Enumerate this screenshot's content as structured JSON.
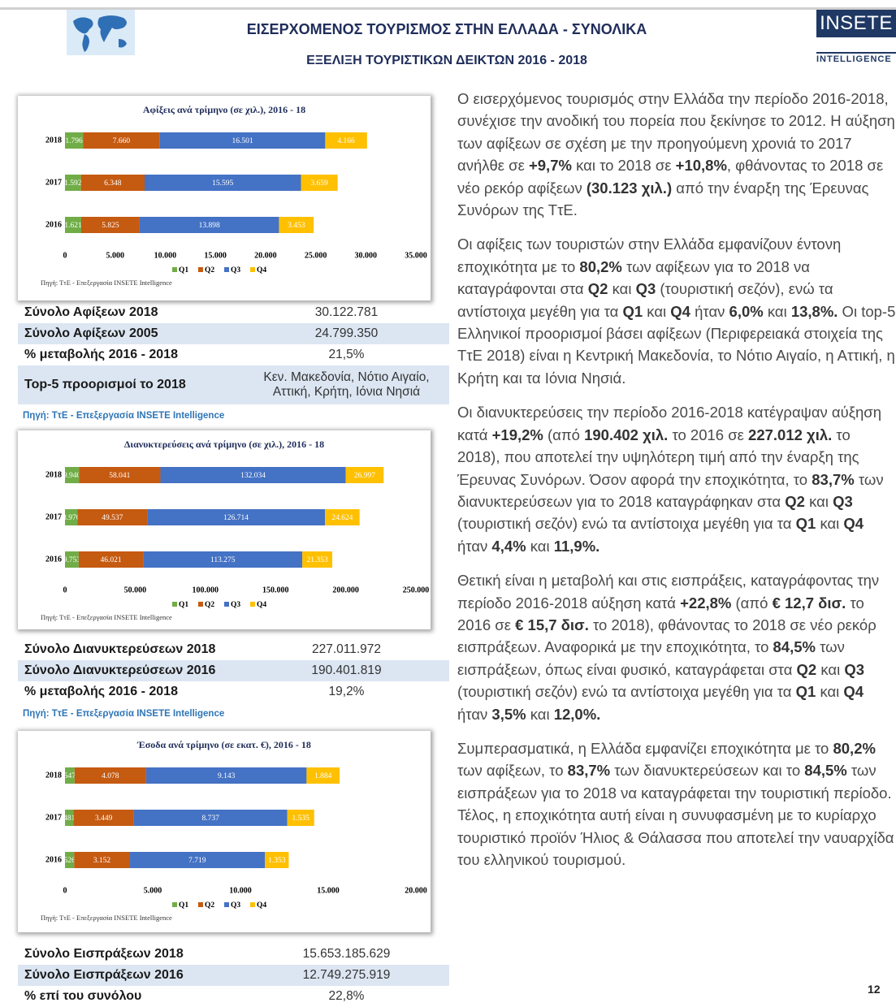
{
  "header": {
    "title": "ΕΙΣΕΡΧΟΜΕΝΟΣ ΤΟΥΡΙΣΜΟΣ ΣΤΗΝ ΕΛΛΑΔΑ - ΣΥΝΟΛΙΚΑ",
    "subtitle": "ΕΞΕΛΙΞΗ ΤΟΥΡΙΣΤΙΚΩΝ ΔΕΙΚΤΩΝ 2016 - 2018",
    "logo": "INSETE",
    "logo_sub": "INTELLIGENCE"
  },
  "chart_data": [
    {
      "type": "bar",
      "orientation": "horizontal",
      "stacked": true,
      "title": "Αφίξεις ανά τρίμηνο (σε χιλ.), 2016 - 18",
      "categories": [
        "2018",
        "2017",
        "2016"
      ],
      "series": [
        {
          "name": "Q1",
          "color": "#70ad47",
          "values": [
            1796,
            1592,
            1621
          ],
          "value_labels": [
            "1.796",
            "1.592",
            "1.621"
          ]
        },
        {
          "name": "Q2",
          "color": "#c55a11",
          "values": [
            7660,
            6348,
            5825
          ],
          "value_labels": [
            "7.660",
            "6.348",
            "5.825"
          ]
        },
        {
          "name": "Q3",
          "color": "#4472c4",
          "values": [
            16501,
            15595,
            13898
          ],
          "value_labels": [
            "16.501",
            "15.595",
            "13.898"
          ]
        },
        {
          "name": "Q4",
          "color": "#ffc000",
          "values": [
            4166,
            3659,
            3453
          ],
          "value_labels": [
            "4.166",
            "3.659",
            "3.453"
          ]
        }
      ],
      "xlim": [
        0,
        35000
      ],
      "xticks": [
        0,
        {
          "value": 5000,
          "label": "5.000"
        },
        {
          "value": 10000,
          "label": "10.000"
        },
        {
          "value": 15000,
          "label": "15.000"
        },
        {
          "value": 20000,
          "label": "20.000"
        },
        {
          "value": 25000,
          "label": "25.000"
        },
        {
          "value": 30000,
          "label": "30.000"
        },
        {
          "value": 35000,
          "label": "35.000"
        }
      ],
      "legend": "bottom",
      "source": "Πηγή: ΤτΕ - Επεξεργασία INSETE Intelligence"
    },
    {
      "type": "bar",
      "orientation": "horizontal",
      "stacked": true,
      "title": "Διανυκτερεύσεις ανά τρίμηνο (σε χιλ.), 2016 - 18",
      "categories": [
        "2018",
        "2017",
        "2016"
      ],
      "series": [
        {
          "name": "Q1",
          "color": "#70ad47",
          "values": [
            9940,
            8976,
            9753
          ],
          "value_labels": [
            "9.940",
            "8.976",
            "9.753"
          ]
        },
        {
          "name": "Q2",
          "color": "#c55a11",
          "values": [
            58041,
            49537,
            46021
          ],
          "value_labels": [
            "58.041",
            "49.537",
            "46.021"
          ]
        },
        {
          "name": "Q3",
          "color": "#4472c4",
          "values": [
            132034,
            126714,
            113275
          ],
          "value_labels": [
            "132.034",
            "126.714",
            "113.275"
          ]
        },
        {
          "name": "Q4",
          "color": "#ffc000",
          "values": [
            26997,
            24624,
            21353
          ],
          "value_labels": [
            "26.997",
            "24.624",
            "21.353"
          ]
        }
      ],
      "xlim": [
        0,
        250000
      ],
      "xticks": [
        0,
        {
          "value": 50000,
          "label": "50.000"
        },
        {
          "value": 100000,
          "label": "100.000"
        },
        {
          "value": 150000,
          "label": "150.000"
        },
        {
          "value": 200000,
          "label": "200.000"
        },
        {
          "value": 250000,
          "label": "250.000"
        }
      ],
      "legend": "bottom",
      "source": "Πηγή: ΤτΕ - Επεξεργασία INSETE Intelligence"
    },
    {
      "type": "bar",
      "orientation": "horizontal",
      "stacked": true,
      "title": "Έσοδα ανά τρίμηνο (σε εκατ. €), 2016 - 18",
      "categories": [
        "2018",
        "2017",
        "2016"
      ],
      "series": [
        {
          "name": "Q1",
          "color": "#70ad47",
          "values": [
            547,
            481,
            526
          ]
        },
        {
          "name": "Q2",
          "color": "#c55a11",
          "values": [
            4078,
            3449,
            3152
          ],
          "value_labels": [
            "4.078",
            "3.449",
            "3.152"
          ]
        },
        {
          "name": "Q3",
          "color": "#4472c4",
          "values": [
            9143,
            8737,
            7719
          ],
          "value_labels": [
            "9.143",
            "8.737",
            "7.719"
          ]
        },
        {
          "name": "Q4",
          "color": "#ffc000",
          "values": [
            1884,
            1535,
            1353
          ],
          "value_labels": [
            "1.884",
            "1.535",
            "1.353"
          ]
        }
      ],
      "xlim": [
        0,
        20000
      ],
      "xticks": [
        0,
        {
          "value": 5000,
          "label": "5.000"
        },
        {
          "value": 10000,
          "label": "10.000"
        },
        {
          "value": 15000,
          "label": "15.000"
        },
        {
          "value": 20000,
          "label": "20.000"
        }
      ],
      "legend": "bottom",
      "source": "Πηγή: ΤτΕ - Επεξεργασία INSETE Intelligence"
    }
  ],
  "tables": [
    {
      "rows": [
        [
          "Σύνολο Αφίξεων 2018",
          "30.122.781"
        ],
        [
          "Σύνολο Αφίξεων 2005",
          "24.799.350"
        ],
        [
          "% μεταβολής 2016 - 2018",
          "21,5%"
        ],
        [
          "Top-5 προορισμοί το 2018",
          "Κεν. Μακεδονία, Νότιο Αιγαίο, Αττική, Κρήτη, Ιόνια Νησιά"
        ]
      ],
      "source": "Πηγή: ΤτΕ - Επεξεργασία INSETE Intelligence"
    },
    {
      "rows": [
        [
          "Σύνολο Διανυκτερεύσεων 2018",
          "227.011.972"
        ],
        [
          "Σύνολο Διανυκτερεύσεων 2016",
          "190.401.819"
        ],
        [
          "% μεταβολής 2016 - 2018",
          "19,2%"
        ]
      ],
      "source": "Πηγή: ΤτΕ - Επεξεργασία INSETE Intelligence"
    },
    {
      "rows": [
        [
          "Σύνολο Εισπράξεων 2018",
          "15.653.185.629"
        ],
        [
          "Σύνολο Εισπράξεων 2016",
          "12.749.275.919"
        ],
        [
          "% επί του συνόλου",
          "22,8%"
        ]
      ]
    }
  ],
  "paragraphs": [
    [
      "Ο εισερχόμενος τουρισμός στην Ελλάδα την περίοδο 2016-2018, συνέχισε την ανοδική του πορεία που ξεκίνησε το 2012. Η αύξηση των αφίξεων σε σχέση με την προηγούμενη χρονιά το 2017 ανήλθε σε ",
      "+9,7%",
      " και το 2018 σε ",
      "+10,8%",
      ", φθάνοντας το 2018 σε νέο ρεκόρ αφίξεων ",
      "(30.123 χιλ.)",
      " από την έναρξη της Έρευνας Συνόρων της ΤτΕ."
    ],
    [
      "Οι αφίξεις των τουριστών στην Ελλάδα εμφανίζουν έντονη εποχικότητα με το ",
      "80,2%",
      " των αφίξεων για το 2018 να καταγράφονται στα ",
      "Q2",
      " και ",
      "Q3",
      " (τουριστική σεζόν), ενώ τα αντίστοιχα μεγέθη για τα ",
      "Q1",
      " και ",
      "Q4",
      " ήταν ",
      "6,0%",
      " και ",
      "13,8%.",
      " Οι top-5 Ελληνικοί προορισμοί βάσει αφίξεων (Περιφερειακά στοιχεία της ΤτΕ 2018) είναι η Κεντρική Μακεδονία, το Νότιο Αιγαίο, η Αττική, η Κρήτη και τα Ιόνια Νησιά."
    ],
    [
      "Οι διανυκτερεύσεις την περίοδο 2016-2018 κατέγραψαν αύξηση κατά ",
      "+19,2%",
      " (από ",
      "190.402 χιλ.",
      " το 2016 σε ",
      "227.012 χιλ.",
      " το 2018), που αποτελεί την υψηλότερη τιμή από την έναρξη της Έρευνας Συνόρων. Όσον αφορά την εποχικότητα, το ",
      "83,7%",
      " των διανυκτερεύσεων για το 2018 καταγράφηκαν στα ",
      "Q2",
      " και ",
      "Q3",
      " (τουριστική σεζόν) ενώ τα αντίστοιχα μεγέθη για τα ",
      "Q1",
      " και ",
      "Q4",
      " ήταν ",
      "4,4%",
      " και ",
      "11,9%."
    ],
    [
      "Θετική είναι η μεταβολή και στις εισπράξεις, καταγράφοντας την περίοδο 2016-2018 αύξηση κατά ",
      "+22,8%",
      " (από ",
      "€ 12,7 δισ.",
      " το 2016 σε ",
      "€ 15,7 δισ.",
      " το 2018), φθάνοντας το 2018 σε νέο ρεκόρ εισπράξεων. Αναφορικά με την εποχικότητα, το ",
      "84,5%",
      " των εισπράξεων, όπως είναι φυσικό, καταγράφεται στα ",
      "Q2",
      " και ",
      "Q3",
      " (τουριστική σεζόν) ενώ τα αντίστοιχα μεγέθη για τα ",
      "Q1",
      " και ",
      "Q4",
      " ήταν ",
      "3,5%",
      " και ",
      "12,0%."
    ],
    [
      "Συμπερασματικά, η Ελλάδα εμφανίζει εποχικότητα με το ",
      "80,2%",
      " των αφίξεων, το ",
      "83,7%",
      " των διανυκτερεύσεων και το ",
      "84,5%",
      " των εισπράξεων για το 2018 να καταγράφεται την τουριστική περίοδο. Τέλος, η εποχικότητα αυτή είναι η συνυφασμένη με το κυρίαρχο τουριστικό προϊόν Ήλιος & Θάλασσα που αποτελεί την ναυαρχίδα του ελληνικού τουρισμού."
    ]
  ],
  "page_number": "12"
}
